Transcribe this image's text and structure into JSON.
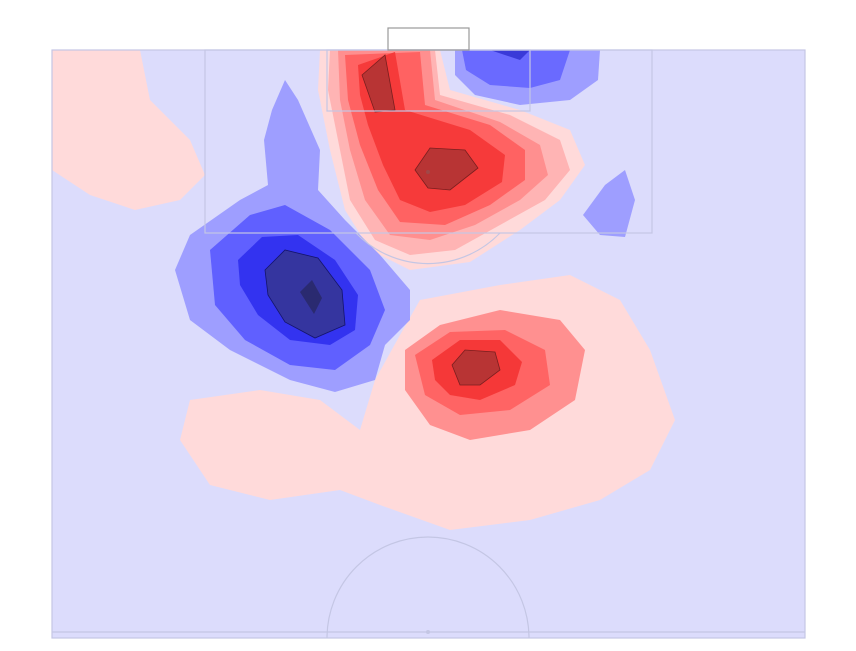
{
  "chart_data": {
    "type": "contour"
  }
}
